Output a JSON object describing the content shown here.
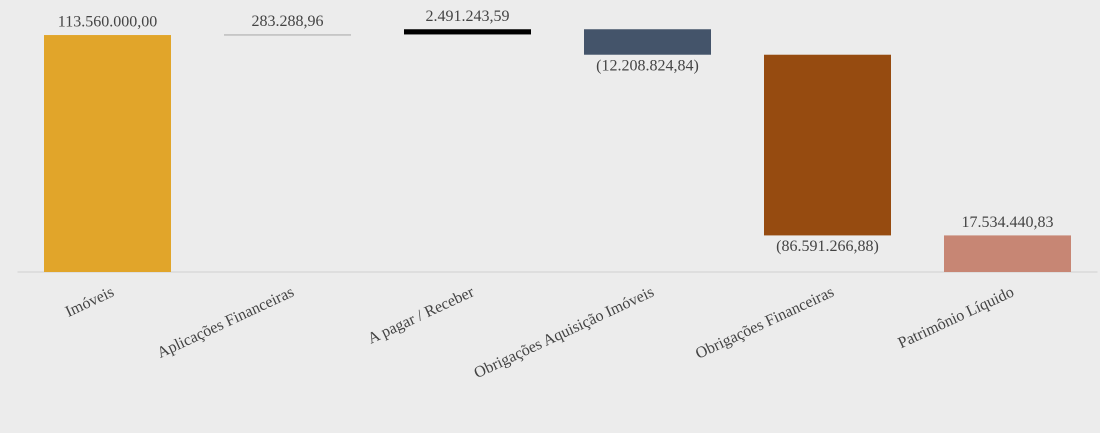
{
  "chart_data": {
    "type": "waterfall",
    "categories": [
      "Imóveis",
      "Aplicações Financeiras",
      "A pagar / Receber",
      "Obrigações Aquisição Imóveis",
      "Obrigações Financeiras",
      "Patrimônio Líquido"
    ],
    "values": [
      113560000.0,
      283288.96,
      2491243.59,
      -12208824.84,
      -86591266.88,
      17534440.83
    ],
    "value_labels": [
      "113.560.000,00",
      "283.288,96",
      "2.491.243,59",
      "(12.208.824,84)",
      "(86.591.266,88)",
      "17.534.440,83"
    ],
    "colors": [
      "#e1a52a",
      "#a6a6a6",
      "#000000",
      "#44546a",
      "#964b10",
      "#c78674"
    ],
    "ylim": [
      0,
      120000000
    ]
  }
}
